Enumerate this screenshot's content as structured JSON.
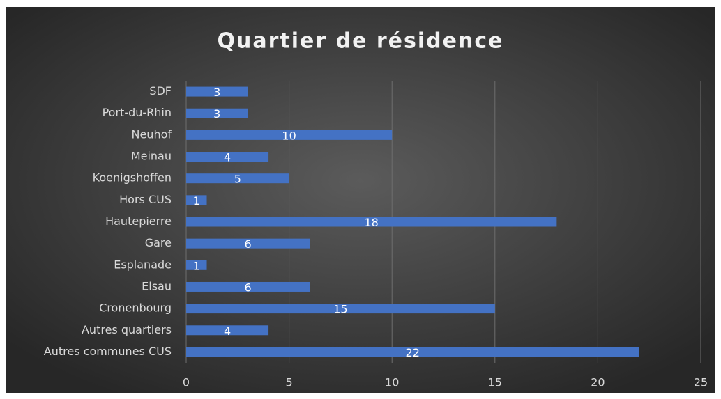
{
  "chart_data": {
    "type": "barh",
    "title": "Quartier de résidence",
    "categories": [
      "Autres communes CUS",
      "Autres quartiers",
      "Cronenbourg",
      "Elsau",
      "Esplanade",
      "Gare",
      "Hautepierre",
      "Hors CUS",
      "Koenigshoffen",
      "Meinau",
      "Neuhof",
      "Port-du-Rhin",
      "SDF"
    ],
    "values": [
      22,
      4,
      15,
      6,
      1,
      6,
      18,
      1,
      5,
      4,
      10,
      3,
      3
    ],
    "color": "#4472c4",
    "xlim": [
      0,
      25
    ],
    "xticks": [
      0,
      5,
      10,
      15,
      20,
      25
    ],
    "grid": true
  }
}
